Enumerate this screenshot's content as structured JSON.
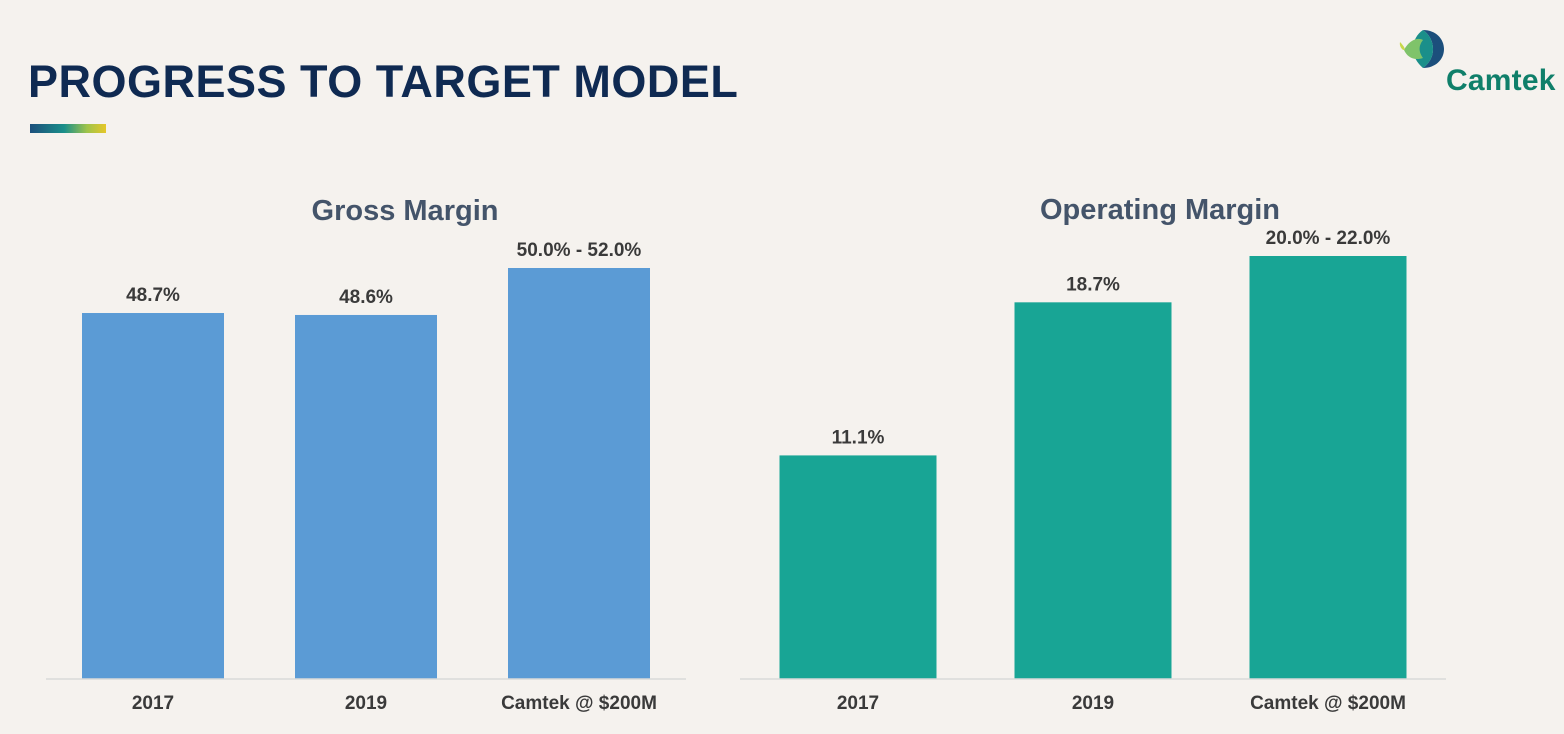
{
  "slide": {
    "title": "PROGRESS TO TARGET MODEL"
  },
  "logo": {
    "text": "Camtek"
  },
  "colors": {
    "title": "#0f2a52",
    "gross_bar": "#5b9bd5",
    "operating_bar": "#18a595",
    "axis": "#d9d9d9",
    "label": "#3a3a3a",
    "chart_title": "#44546a",
    "background": "#f5f2ee"
  },
  "chart_data": [
    {
      "type": "bar",
      "title": "Gross Margin",
      "categories": [
        "2017",
        "2019",
        "Camtek @ $200M"
      ],
      "values": [
        48.7,
        48.6,
        51.0
      ],
      "range_values": [
        null,
        null,
        [
          50.0,
          52.0
        ]
      ],
      "data_labels": [
        "48.7%",
        "48.6%",
        "50.0% - 52.0%"
      ],
      "unit": "%",
      "ylim": [
        30,
        58
      ],
      "grid": false,
      "legend": "none",
      "color": "#5b9bd5"
    },
    {
      "type": "bar",
      "title": "Operating Margin",
      "categories": [
        "2017",
        "2019",
        "Camtek @ $200M"
      ],
      "values": [
        11.1,
        18.7,
        21.0
      ],
      "range_values": [
        null,
        null,
        [
          20.0,
          22.0
        ]
      ],
      "data_labels": [
        "11.1%",
        "18.7%",
        "20.0% - 22.0%"
      ],
      "unit": "%",
      "ylim": [
        0,
        24
      ],
      "grid": false,
      "legend": "none",
      "color": "#18a595"
    }
  ]
}
